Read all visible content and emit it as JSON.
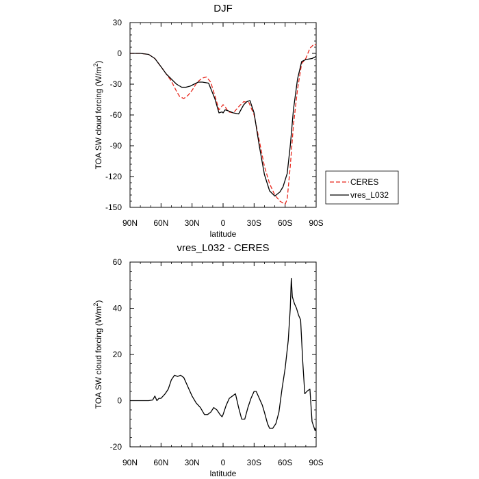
{
  "chart_data": [
    {
      "type": "line",
      "title": "DJF",
      "xlabel": "latitude",
      "ylabel": "TOA SW cloud forcing (W/m",
      "ylabel_sup": "2",
      "ylabel_close": ")",
      "xlim": [
        90,
        -90
      ],
      "ylim": [
        -150,
        30
      ],
      "xticks": [
        90,
        60,
        30,
        0,
        -30,
        -60,
        -90
      ],
      "xtick_labels": [
        "90N",
        "60N",
        "30N",
        "0",
        "30S",
        "60S",
        "90S"
      ],
      "yticks": [
        30,
        0,
        -30,
        -60,
        -90,
        -120,
        -150
      ],
      "ytick_labels": [
        "30",
        "0",
        "-30",
        "-60",
        "-90",
        "-120",
        "-150"
      ],
      "series": [
        {
          "name": "CERES",
          "color": "#e8261b",
          "style": "dashed",
          "x": [
            90,
            80,
            72,
            66,
            60,
            55,
            50,
            45,
            42,
            38,
            34,
            30,
            25,
            20,
            16,
            12,
            8,
            4,
            0,
            -2,
            -5,
            -10,
            -15,
            -20,
            -25,
            -30,
            -35,
            -40,
            -45,
            -50,
            -55,
            -60,
            -62,
            -65,
            -68,
            -72,
            -76,
            -80,
            -84,
            -88,
            -90
          ],
          "y": [
            0,
            0,
            -1,
            -5,
            -13,
            -20,
            -27,
            -37,
            -42,
            -44,
            -41,
            -36,
            -28,
            -24,
            -23,
            -28,
            -41,
            -55,
            -50,
            -52,
            -57,
            -58,
            -52,
            -47,
            -48,
            -60,
            -85,
            -110,
            -127,
            -138,
            -144,
            -147,
            -142,
            -110,
            -70,
            -35,
            -10,
            -5,
            5,
            9,
            8
          ]
        },
        {
          "name": "vres_L032",
          "color": "#000000",
          "style": "solid",
          "x": [
            90,
            80,
            72,
            66,
            60,
            55,
            50,
            45,
            40,
            36,
            32,
            28,
            24,
            20,
            14,
            8,
            4,
            1,
            0,
            -2,
            -5,
            -10,
            -15,
            -20,
            -23,
            -26,
            -30,
            -35,
            -40,
            -45,
            -50,
            -55,
            -58,
            -62,
            -65,
            -68,
            -72,
            -76,
            -80,
            -86,
            -90
          ],
          "y": [
            0,
            0,
            -1,
            -5,
            -13,
            -20,
            -25,
            -30,
            -33,
            -33,
            -32,
            -30,
            -28,
            -28,
            -29,
            -44,
            -58,
            -57,
            -58,
            -55,
            -56,
            -58,
            -59,
            -50,
            -47,
            -46,
            -58,
            -90,
            -118,
            -134,
            -139,
            -135,
            -130,
            -117,
            -90,
            -55,
            -25,
            -8,
            -6,
            -5,
            -3
          ]
        }
      ],
      "legend": {
        "position": "right",
        "entries": [
          "CERES",
          "vres_L032"
        ]
      }
    },
    {
      "type": "line",
      "title": "vres_L032 - CERES",
      "xlabel": "latitude",
      "ylabel": "TOA SW cloud forcing (W/m",
      "ylabel_sup": "2",
      "ylabel_close": ")",
      "xlim": [
        90,
        -90
      ],
      "ylim": [
        -20,
        60
      ],
      "xticks": [
        90,
        60,
        30,
        0,
        -30,
        -60,
        -90
      ],
      "xtick_labels": [
        "90N",
        "60N",
        "30N",
        "0",
        "30S",
        "60S",
        "90S"
      ],
      "yticks": [
        60,
        40,
        20,
        0,
        -20
      ],
      "ytick_labels": [
        "60",
        "40",
        "20",
        "0",
        "-20"
      ],
      "series": [
        {
          "name": "vres_L032 - CERES",
          "color": "#000000",
          "style": "solid",
          "x": [
            90,
            80,
            72,
            68,
            66,
            64,
            62,
            60,
            56,
            53,
            50,
            47,
            44,
            41,
            38,
            35,
            33,
            30,
            26,
            22,
            18,
            15,
            12,
            9,
            6,
            3,
            1,
            0,
            -3,
            -6,
            -9,
            -12,
            -15,
            -18,
            -21,
            -24,
            -27,
            -30,
            -32,
            -35,
            -38,
            -40,
            -43,
            -45,
            -48,
            -51,
            -54,
            -57,
            -60,
            -63,
            -65,
            -66,
            -67,
            -69,
            -71,
            -73,
            -75,
            -77,
            -79,
            -81,
            -84,
            -86,
            -89,
            -90
          ],
          "y": [
            0,
            0,
            0,
            0.3,
            2,
            0,
            1,
            1,
            3,
            5,
            9,
            11,
            10.5,
            11,
            10,
            7,
            5,
            2,
            -1,
            -3,
            -6,
            -6,
            -5,
            -3,
            -4,
            -6,
            -7,
            -6,
            -2,
            1,
            2,
            3,
            -3,
            -8,
            -8,
            -3,
            1,
            4,
            4,
            1,
            -2,
            -5,
            -10,
            -12,
            -12,
            -10,
            -5,
            5,
            14,
            26,
            40,
            53,
            45,
            42,
            40,
            37,
            35,
            17,
            3,
            4,
            5,
            -9,
            -13,
            -12
          ]
        }
      ]
    }
  ]
}
